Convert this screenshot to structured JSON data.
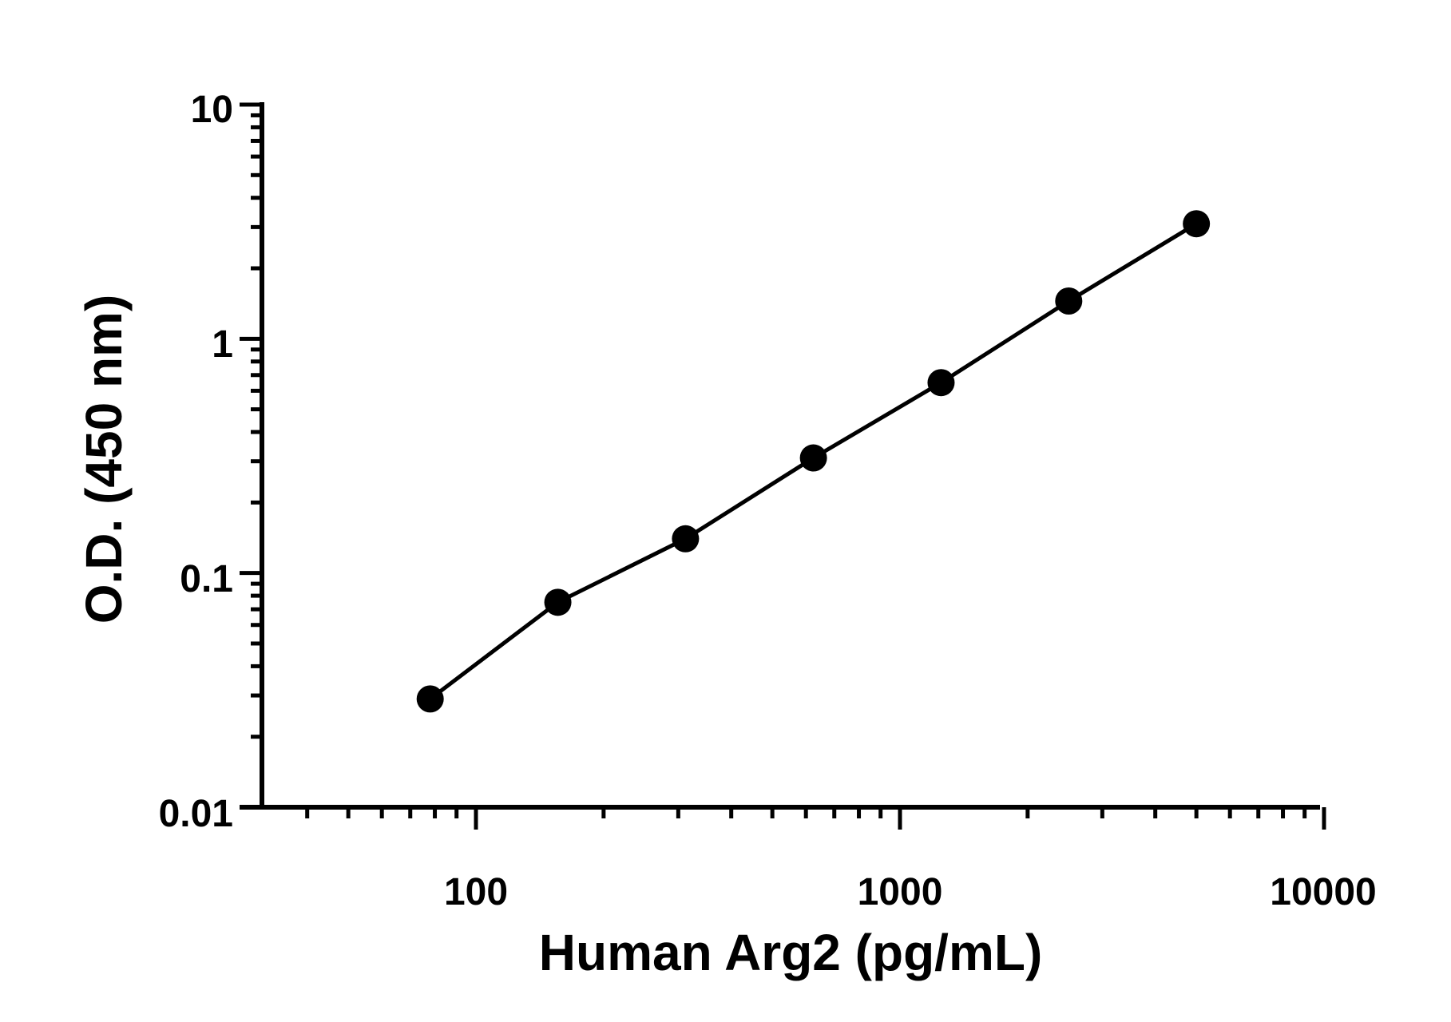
{
  "chart_data": {
    "type": "scatter",
    "xlabel": "Human Arg2 (pg/mL)",
    "ylabel": "O.D. (450 nm)",
    "x_scale": "log",
    "y_scale": "log",
    "xlim": [
      30,
      10000
    ],
    "ylim": [
      0.01,
      10
    ],
    "x_tick_labels": [
      "100",
      "1000",
      "10000"
    ],
    "y_tick_labels": [
      "0.01",
      "0.1",
      "1",
      "10"
    ],
    "grid": false,
    "fit_line": true,
    "series": [
      {
        "x": [
          78,
          156,
          312,
          625,
          1250,
          2500,
          5000
        ],
        "y": [
          0.029,
          0.075,
          0.14,
          0.31,
          0.65,
          1.45,
          3.1
        ]
      }
    ],
    "colors": {
      "marker": "#000000",
      "line": "#000000",
      "axis": "#000000"
    }
  }
}
